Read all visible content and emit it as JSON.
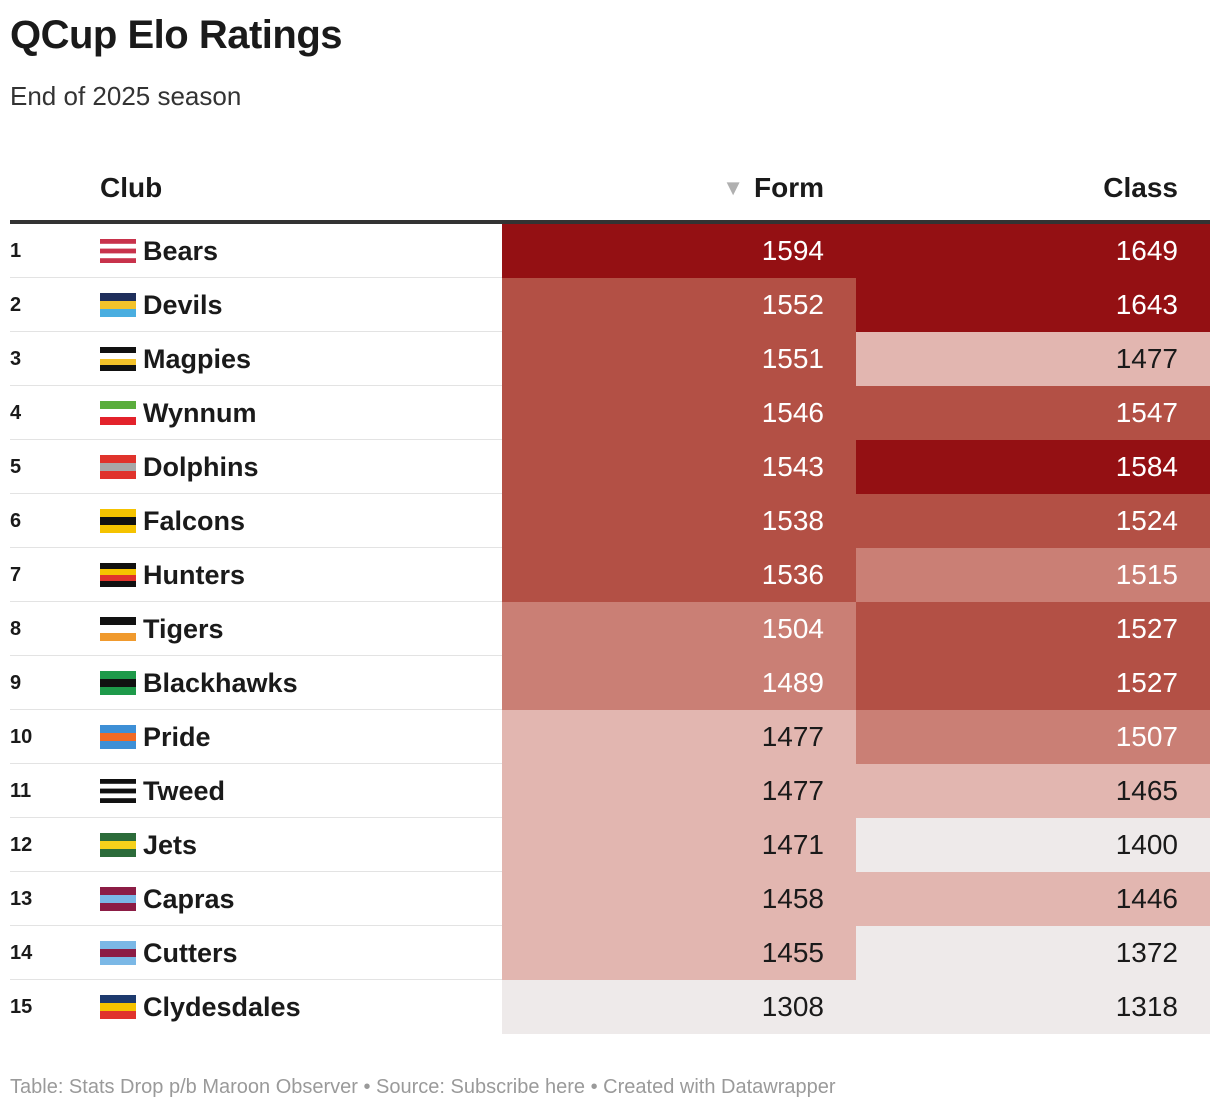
{
  "header": {
    "title": "QCup Elo Ratings",
    "subtitle": "End of 2025 season"
  },
  "columns": {
    "club": "Club",
    "sort_icon": "▼",
    "form": "Form",
    "class": "Class"
  },
  "colors": {
    "tier1": "#941013",
    "tier2": "#b35045",
    "tier3": "#ca7f75",
    "tier4": "#e2b6b0",
    "tier5": "#eeeaea",
    "text_dark": "#1a1a1a",
    "text_light": "#ffffff"
  },
  "chart_data": {
    "type": "table",
    "title": "QCup Elo Ratings",
    "subtitle": "End of 2025 season",
    "columns": [
      "Club",
      "Form",
      "Class"
    ],
    "sorted_by": "Form",
    "rows": [
      {
        "rank": "1",
        "club": "Bears",
        "form": 1594,
        "class": 1649,
        "form_tier": 1,
        "class_tier": 1,
        "flag": [
          "#c8324b",
          "#ffffff",
          "#c8324b",
          "#ffffff",
          "#c8324b"
        ]
      },
      {
        "rank": "2",
        "club": "Devils",
        "form": 1552,
        "class": 1643,
        "form_tier": 2,
        "class_tier": 1,
        "flag": [
          "#1f2f5c",
          "#f3c22a",
          "#4aaee0"
        ]
      },
      {
        "rank": "3",
        "club": "Magpies",
        "form": 1551,
        "class": 1477,
        "form_tier": 2,
        "class_tier": 4,
        "flag": [
          "#111111",
          "#ffffff",
          "#f3c22a",
          "#111111"
        ]
      },
      {
        "rank": "4",
        "club": "Wynnum",
        "form": 1546,
        "class": 1547,
        "form_tier": 2,
        "class_tier": 2,
        "flag": [
          "#5aad3c",
          "#ffffff",
          "#e3222b"
        ]
      },
      {
        "rank": "5",
        "club": "Dolphins",
        "form": 1543,
        "class": 1584,
        "form_tier": 2,
        "class_tier": 1,
        "flag": [
          "#e0332c",
          "#a8a8a8",
          "#e0332c"
        ]
      },
      {
        "rank": "6",
        "club": "Falcons",
        "form": 1538,
        "class": 1524,
        "form_tier": 2,
        "class_tier": 2,
        "flag": [
          "#f5c300",
          "#111111",
          "#f5c300"
        ]
      },
      {
        "rank": "7",
        "club": "Hunters",
        "form": 1536,
        "class": 1515,
        "form_tier": 2,
        "class_tier": 3,
        "flag": [
          "#111111",
          "#f5c300",
          "#e0332c",
          "#111111"
        ]
      },
      {
        "rank": "8",
        "club": "Tigers",
        "form": 1504,
        "class": 1527,
        "form_tier": 3,
        "class_tier": 2,
        "flag": [
          "#111111",
          "#ffffff",
          "#f09a2e"
        ]
      },
      {
        "rank": "9",
        "club": "Blackhawks",
        "form": 1489,
        "class": 1527,
        "form_tier": 3,
        "class_tier": 2,
        "flag": [
          "#1e9a4a",
          "#111111",
          "#1e9a4a"
        ]
      },
      {
        "rank": "10",
        "club": "Pride",
        "form": 1477,
        "class": 1507,
        "form_tier": 4,
        "class_tier": 3,
        "flag": [
          "#3d8fd6",
          "#f06a25",
          "#3d8fd6"
        ]
      },
      {
        "rank": "11",
        "club": "Tweed",
        "form": 1477,
        "class": 1465,
        "form_tier": 4,
        "class_tier": 4,
        "flag": [
          "#111111",
          "#ffffff",
          "#111111",
          "#ffffff",
          "#111111"
        ]
      },
      {
        "rank": "12",
        "club": "Jets",
        "form": 1471,
        "class": 1400,
        "form_tier": 4,
        "class_tier": 5,
        "flag": [
          "#2c6b3a",
          "#f5d11b",
          "#2c6b3a"
        ]
      },
      {
        "rank": "13",
        "club": "Capras",
        "form": 1458,
        "class": 1446,
        "form_tier": 4,
        "class_tier": 4,
        "flag": [
          "#8c1d45",
          "#7bb8e6",
          "#8c1d45"
        ]
      },
      {
        "rank": "14",
        "club": "Cutters",
        "form": 1455,
        "class": 1372,
        "form_tier": 4,
        "class_tier": 5,
        "flag": [
          "#7bb8e6",
          "#8c1d45",
          "#7bb8e6"
        ]
      },
      {
        "rank": "15",
        "club": "Clydesdales",
        "form": 1308,
        "class": 1318,
        "form_tier": 5,
        "class_tier": 5,
        "flag": [
          "#1d3a6e",
          "#f5c300",
          "#e0332c"
        ]
      }
    ]
  },
  "footer": {
    "text": "Table: Stats Drop p/b Maroon Observer • Source: Subscribe here • Created with Datawrapper"
  }
}
